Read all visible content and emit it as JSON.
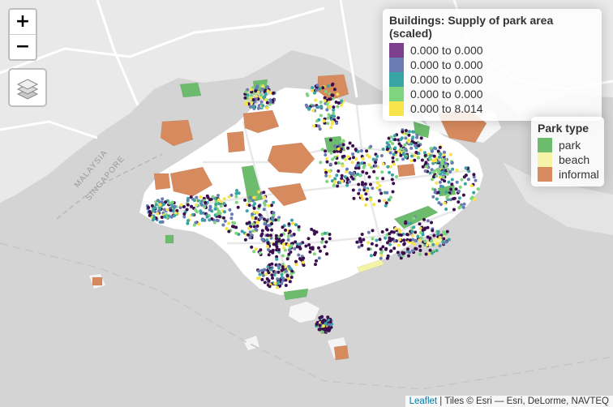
{
  "map": {
    "zoom_in_label": "+",
    "zoom_out_label": "−",
    "layers_icon": "layers-icon",
    "basemap_labels": {
      "malaysia": "MALAYSIA",
      "singapore": "SINGAPORE"
    }
  },
  "supply_legend": {
    "title": "Buildings: Supply of park area (scaled)",
    "items": [
      {
        "label": "0.000 to 0.000",
        "color": "#7b3f8e"
      },
      {
        "label": "0.000 to 0.000",
        "color": "#6b7bb3"
      },
      {
        "label": "0.000 to 0.000",
        "color": "#3aa3a3"
      },
      {
        "label": "0.000 to 0.000",
        "color": "#7fd47f"
      },
      {
        "label": "0.000 to 8.014",
        "color": "#f7e44c"
      }
    ]
  },
  "park_legend": {
    "title": "Park type",
    "items": [
      {
        "label": "park",
        "color": "#6dbb6d"
      },
      {
        "label": "beach",
        "color": "#f5f3a8"
      },
      {
        "label": "informal",
        "color": "#d68a5e"
      }
    ]
  },
  "attribution": {
    "link": "Leaflet",
    "text": " | Tiles © Esri — Esri, DeLorme, NAVTEQ"
  }
}
